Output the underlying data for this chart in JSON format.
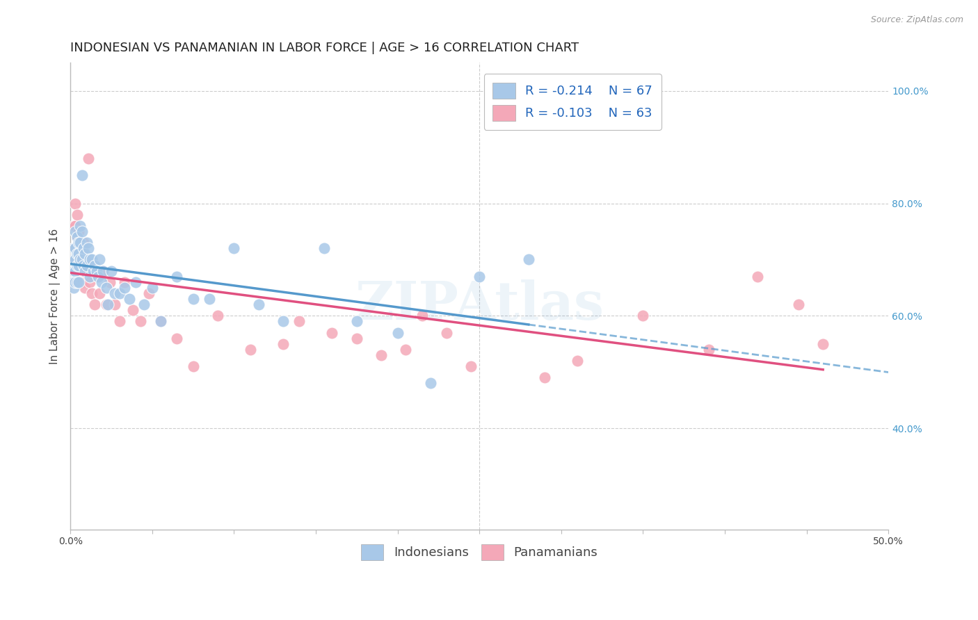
{
  "title": "INDONESIAN VS PANAMANIAN IN LABOR FORCE | AGE > 16 CORRELATION CHART",
  "source": "Source: ZipAtlas.com",
  "ylabel": "In Labor Force | Age > 16",
  "xlim": [
    0.0,
    0.5
  ],
  "ylim": [
    0.22,
    1.05
  ],
  "y_ticks_right": [
    0.4,
    0.6,
    0.8,
    1.0
  ],
  "y_tick_labels_right": [
    "40.0%",
    "60.0%",
    "80.0%",
    "100.0%"
  ],
  "legend_r_blue": "-0.214",
  "legend_n_blue": "67",
  "legend_r_pink": "-0.103",
  "legend_n_pink": "63",
  "blue_color": "#a8c8e8",
  "pink_color": "#f4a8b8",
  "blue_line_color": "#5599cc",
  "pink_line_color": "#e05080",
  "legend_text_color": "#2266bb",
  "watermark": "ZIPAtlas",
  "indonesians_x": [
    0.001,
    0.001,
    0.001,
    0.002,
    0.002,
    0.002,
    0.002,
    0.002,
    0.003,
    0.003,
    0.003,
    0.003,
    0.003,
    0.004,
    0.004,
    0.004,
    0.004,
    0.005,
    0.005,
    0.005,
    0.005,
    0.006,
    0.006,
    0.006,
    0.007,
    0.007,
    0.007,
    0.008,
    0.008,
    0.009,
    0.009,
    0.01,
    0.01,
    0.011,
    0.012,
    0.012,
    0.013,
    0.014,
    0.015,
    0.016,
    0.017,
    0.018,
    0.019,
    0.02,
    0.022,
    0.023,
    0.025,
    0.027,
    0.03,
    0.033,
    0.036,
    0.04,
    0.045,
    0.05,
    0.055,
    0.065,
    0.075,
    0.085,
    0.1,
    0.115,
    0.13,
    0.155,
    0.175,
    0.2,
    0.22,
    0.25,
    0.28
  ],
  "indonesians_y": [
    0.68,
    0.67,
    0.66,
    0.72,
    0.7,
    0.68,
    0.66,
    0.65,
    0.75,
    0.72,
    0.7,
    0.68,
    0.66,
    0.74,
    0.71,
    0.69,
    0.66,
    0.73,
    0.71,
    0.69,
    0.66,
    0.76,
    0.73,
    0.7,
    0.85,
    0.75,
    0.7,
    0.72,
    0.69,
    0.71,
    0.68,
    0.73,
    0.69,
    0.72,
    0.7,
    0.67,
    0.7,
    0.68,
    0.69,
    0.68,
    0.67,
    0.7,
    0.66,
    0.68,
    0.65,
    0.62,
    0.68,
    0.64,
    0.64,
    0.65,
    0.63,
    0.66,
    0.62,
    0.65,
    0.59,
    0.67,
    0.63,
    0.63,
    0.72,
    0.62,
    0.59,
    0.72,
    0.59,
    0.57,
    0.48,
    0.67,
    0.7
  ],
  "panamanians_x": [
    0.001,
    0.001,
    0.002,
    0.002,
    0.002,
    0.002,
    0.003,
    0.003,
    0.003,
    0.003,
    0.004,
    0.004,
    0.004,
    0.005,
    0.005,
    0.005,
    0.006,
    0.006,
    0.006,
    0.007,
    0.007,
    0.008,
    0.008,
    0.009,
    0.009,
    0.01,
    0.011,
    0.012,
    0.013,
    0.014,
    0.015,
    0.017,
    0.018,
    0.02,
    0.022,
    0.024,
    0.027,
    0.03,
    0.033,
    0.038,
    0.043,
    0.048,
    0.055,
    0.065,
    0.075,
    0.09,
    0.11,
    0.13,
    0.14,
    0.16,
    0.175,
    0.19,
    0.205,
    0.215,
    0.23,
    0.245,
    0.29,
    0.31,
    0.35,
    0.39,
    0.42,
    0.445,
    0.46
  ],
  "panamanians_y": [
    0.68,
    0.66,
    0.76,
    0.72,
    0.7,
    0.66,
    0.8,
    0.76,
    0.72,
    0.68,
    0.78,
    0.74,
    0.7,
    0.75,
    0.71,
    0.67,
    0.73,
    0.69,
    0.66,
    0.71,
    0.66,
    0.73,
    0.68,
    0.65,
    0.7,
    0.68,
    0.88,
    0.66,
    0.64,
    0.68,
    0.62,
    0.67,
    0.64,
    0.68,
    0.62,
    0.66,
    0.62,
    0.59,
    0.66,
    0.61,
    0.59,
    0.64,
    0.59,
    0.56,
    0.51,
    0.6,
    0.54,
    0.55,
    0.59,
    0.57,
    0.56,
    0.53,
    0.54,
    0.6,
    0.57,
    0.51,
    0.49,
    0.52,
    0.6,
    0.54,
    0.67,
    0.62,
    0.55
  ],
  "background_color": "#ffffff",
  "grid_color": "#cccccc",
  "title_fontsize": 13,
  "axis_fontsize": 11,
  "tick_fontsize": 10,
  "legend_fontsize": 13
}
